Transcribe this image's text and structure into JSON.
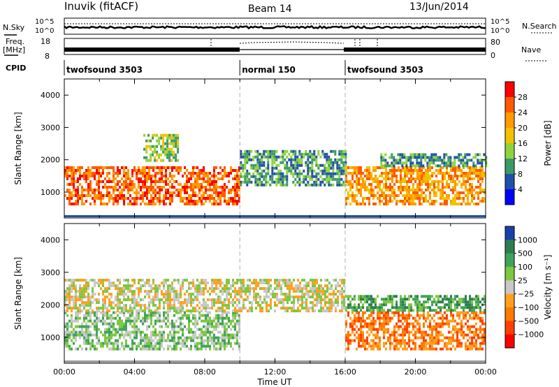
{
  "header": {
    "station": "Inuvik (fitACF)",
    "beam": "Beam 14",
    "date": "13/Jun/2014"
  },
  "aux": {
    "nsky_label": "N.Sky",
    "nsky_ticks": [
      "10^5",
      "10^0"
    ],
    "nsearch_label": "N.Search",
    "freq_label": "Freq.",
    "freq_unit": "[MHz]",
    "freq_ticks": [
      "18",
      "8"
    ],
    "nave_ticks": [
      "80",
      "0"
    ],
    "nave_label": "Nave",
    "cpid_label": "CPID",
    "cpid_segments": [
      {
        "name": "twofsound 3503",
        "start": 0,
        "end": 10
      },
      {
        "name": "normal 150",
        "start": 10,
        "end": 16
      },
      {
        "name": "twofsound 3503",
        "start": 16,
        "end": 24
      }
    ]
  },
  "x_axis": {
    "label": "Time UT",
    "ticks": [
      "00:00",
      "04:00",
      "08:00",
      "12:00",
      "16:00",
      "20:00",
      "00:00"
    ],
    "range_hours": [
      0,
      24
    ]
  },
  "chart_data": [
    {
      "type": "heatmap",
      "panel": "power",
      "ylabel": "Slant Range [km]",
      "ylim": [
        200,
        4500
      ],
      "yticks": [
        1000,
        2000,
        3000,
        4000
      ],
      "colorbar_label": "Power [dB]",
      "colorbar_ticks": [
        "28",
        "24",
        "20",
        "16",
        "12",
        "8",
        "4"
      ],
      "colorbar_colors": [
        "#ff0000",
        "#ff5a00",
        "#ff9a00",
        "#f2c200",
        "#8fd43c",
        "#3c9a64",
        "#2050a8",
        "#0000ff"
      ],
      "regions": [
        {
          "t": [
            0,
            10
          ],
          "r": [
            600,
            1800
          ],
          "level": 24
        },
        {
          "t": [
            4.5,
            6.5
          ],
          "r": [
            2000,
            2800
          ],
          "level": 14
        },
        {
          "t": [
            10,
            16
          ],
          "r": [
            1200,
            2300
          ],
          "level": 8
        },
        {
          "t": [
            16,
            24
          ],
          "r": [
            600,
            1800
          ],
          "level": 22
        },
        {
          "t": [
            18,
            24
          ],
          "r": [
            1800,
            2200
          ],
          "level": 10
        }
      ]
    },
    {
      "type": "heatmap",
      "panel": "velocity",
      "ylabel": "Slant Range [km]",
      "ylim": [
        200,
        4500
      ],
      "yticks": [
        1000,
        2000,
        3000,
        4000
      ],
      "colorbar_label": "Velocity [m s⁻¹]",
      "colorbar_ticks": [
        "1000",
        "500",
        "100",
        "25",
        "−25",
        "−100",
        "−500",
        "−1000"
      ],
      "colorbar_colors": [
        "#1a3fa8",
        "#2f7d4f",
        "#3fa35a",
        "#7cc840",
        "#c8c8c8",
        "#ffa020",
        "#ff7a00",
        "#ff4000",
        "#ff0000"
      ],
      "regions": [
        {
          "t": [
            0,
            10
          ],
          "r": [
            600,
            1800
          ],
          "level": 60
        },
        {
          "t": [
            0,
            16
          ],
          "r": [
            1800,
            2800
          ],
          "level": 0
        },
        {
          "t": [
            16,
            24
          ],
          "r": [
            600,
            1800
          ],
          "level": -150
        },
        {
          "t": [
            16,
            24
          ],
          "r": [
            1800,
            2300
          ],
          "level": 200
        }
      ]
    }
  ]
}
